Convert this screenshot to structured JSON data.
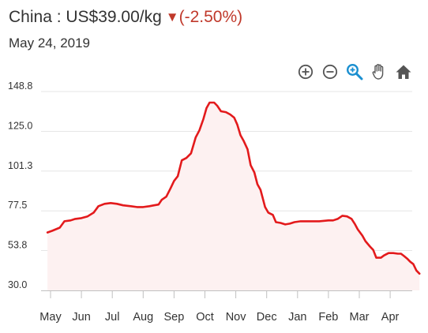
{
  "header": {
    "title": "China : US$39.00/kg",
    "change_arrow": "▼",
    "change": "(-2.50%)",
    "date": "May 24, 2019"
  },
  "toolbar": {
    "tools": [
      {
        "name": "zoom-in-icon",
        "glyph": "plus-circle"
      },
      {
        "name": "zoom-out-icon",
        "glyph": "minus-circle"
      },
      {
        "name": "magnify-icon",
        "glyph": "magnifier"
      },
      {
        "name": "pan-hand-icon",
        "glyph": "hand"
      },
      {
        "name": "home-icon",
        "glyph": "house"
      }
    ]
  },
  "colors": {
    "line": "#e31a1c",
    "fill": "#fdf1f1",
    "down": "#c0392b",
    "grid": "#e6e6e6",
    "axis": "#c0c0c0",
    "icon": "#555555",
    "accent_icon": "#1a8fd0"
  },
  "chart_data": {
    "type": "area",
    "ylim": [
      30.0,
      148.8
    ],
    "yticks": [
      "148.8",
      "125.0",
      "101.3",
      "77.5",
      "53.8",
      "30.0"
    ],
    "ytick_values": [
      148.8,
      125.0,
      101.3,
      77.5,
      53.8,
      30.0
    ],
    "xlim": [
      0,
      12
    ],
    "xticks": [
      "May",
      "Jun",
      "Jul",
      "Aug",
      "Sep",
      "Oct",
      "Nov",
      "Dec",
      "Jan",
      "Feb",
      "Mar",
      "Apr"
    ],
    "xtick_positions": [
      0,
      1,
      2,
      3,
      4,
      5,
      6,
      7,
      8,
      9,
      10,
      11
    ],
    "grid": true,
    "series": [
      {
        "points": [
          [
            -0.1,
            64.6
          ],
          [
            0.05,
            65.6
          ],
          [
            0.3,
            67.5
          ],
          [
            0.45,
            71.3
          ],
          [
            0.65,
            71.8
          ],
          [
            0.8,
            72.7
          ],
          [
            1.0,
            73.2
          ],
          [
            1.2,
            74.2
          ],
          [
            1.4,
            76.5
          ],
          [
            1.55,
            80.3
          ],
          [
            1.75,
            81.7
          ],
          [
            1.95,
            82.2
          ],
          [
            2.15,
            81.7
          ],
          [
            2.35,
            80.8
          ],
          [
            2.6,
            80.3
          ],
          [
            2.8,
            79.8
          ],
          [
            3.0,
            79.8
          ],
          [
            3.2,
            80.3
          ],
          [
            3.35,
            80.8
          ],
          [
            3.5,
            81.3
          ],
          [
            3.6,
            84.1
          ],
          [
            3.75,
            86.0
          ],
          [
            3.88,
            90.7
          ],
          [
            4.0,
            95.4
          ],
          [
            4.12,
            98.2
          ],
          [
            4.25,
            107.7
          ],
          [
            4.4,
            109.1
          ],
          [
            4.55,
            111.9
          ],
          [
            4.7,
            121.4
          ],
          [
            4.82,
            125.6
          ],
          [
            4.95,
            132.3
          ],
          [
            5.05,
            138.9
          ],
          [
            5.15,
            142.2
          ],
          [
            5.3,
            142.2
          ],
          [
            5.4,
            140.3
          ],
          [
            5.52,
            137.0
          ],
          [
            5.68,
            136.5
          ],
          [
            5.82,
            135.1
          ],
          [
            5.95,
            133.2
          ],
          [
            6.05,
            128.9
          ],
          [
            6.15,
            122.8
          ],
          [
            6.25,
            119.5
          ],
          [
            6.38,
            114.3
          ],
          [
            6.48,
            104.8
          ],
          [
            6.6,
            100.5
          ],
          [
            6.7,
            93.4
          ],
          [
            6.8,
            90.1
          ],
          [
            6.88,
            84.6
          ],
          [
            6.95,
            79.8
          ],
          [
            7.05,
            76.5
          ],
          [
            7.2,
            75.1
          ],
          [
            7.3,
            70.8
          ],
          [
            7.45,
            70.3
          ],
          [
            7.6,
            69.4
          ],
          [
            7.75,
            69.9
          ],
          [
            7.9,
            70.8
          ],
          [
            8.1,
            71.3
          ],
          [
            8.4,
            71.3
          ],
          [
            8.7,
            71.3
          ],
          [
            9.0,
            71.8
          ],
          [
            9.15,
            71.8
          ],
          [
            9.3,
            72.7
          ],
          [
            9.45,
            74.6
          ],
          [
            9.6,
            74.2
          ],
          [
            9.75,
            72.7
          ],
          [
            9.85,
            69.9
          ],
          [
            9.95,
            66.5
          ],
          [
            10.1,
            62.7
          ],
          [
            10.2,
            59.4
          ],
          [
            10.35,
            56.1
          ],
          [
            10.45,
            54.2
          ],
          [
            10.55,
            49.5
          ],
          [
            10.7,
            49.5
          ],
          [
            10.8,
            50.9
          ],
          [
            10.95,
            52.3
          ],
          [
            11.1,
            52.3
          ],
          [
            11.25,
            51.9
          ],
          [
            11.35,
            51.9
          ],
          [
            11.45,
            50.5
          ],
          [
            11.55,
            49.0
          ],
          [
            11.65,
            47.1
          ],
          [
            11.75,
            45.7
          ],
          [
            11.85,
            41.9
          ],
          [
            11.95,
            40.0
          ]
        ]
      }
    ]
  }
}
